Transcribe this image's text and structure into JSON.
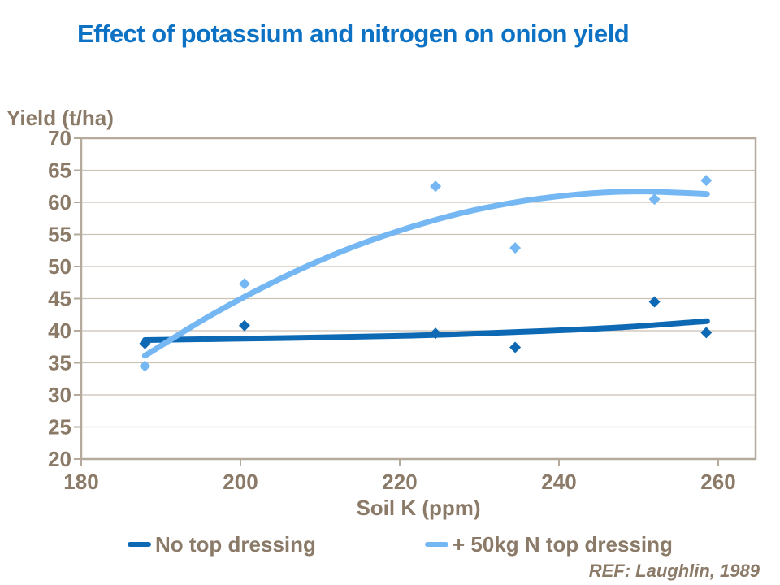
{
  "chart_data": {
    "type": "scatter",
    "title": "Effect of potassium and nitrogen on onion yield",
    "xlabel": "Soil K (ppm)",
    "ylabel": "Yield (t/ha)",
    "ref": "REF: Laughlin, 1989",
    "xlim": [
      180,
      265
    ],
    "ylim": [
      20,
      70
    ],
    "x_ticks": [
      180,
      200,
      220,
      240,
      260
    ],
    "y_ticks": [
      20,
      25,
      30,
      35,
      40,
      45,
      50,
      55,
      60,
      65,
      70
    ],
    "grid": "horizontal",
    "legend_position": "bottom",
    "series": [
      {
        "name": "No top dressing",
        "color": "#0d69b4",
        "marker": "diamond",
        "points": [
          [
            188,
            38.0
          ],
          [
            200.5,
            40.8
          ],
          [
            224.5,
            39.6
          ],
          [
            234.5,
            37.4
          ],
          [
            252,
            44.5
          ],
          [
            258.5,
            39.7
          ]
        ],
        "trendline": [
          [
            188,
            38.55
          ],
          [
            205,
            38.85
          ],
          [
            222,
            39.25
          ],
          [
            238,
            39.95
          ],
          [
            248,
            40.55
          ],
          [
            258.6,
            41.5
          ]
        ]
      },
      {
        "name": "+ 50kg N top dressing",
        "color": "#74b7f2",
        "marker": "diamond",
        "points": [
          [
            188,
            34.5
          ],
          [
            200.5,
            47.3
          ],
          [
            224.5,
            62.5
          ],
          [
            234.5,
            52.9
          ],
          [
            252,
            60.5
          ],
          [
            258.5,
            63.4
          ]
        ],
        "trendline": [
          [
            188,
            36.1
          ],
          [
            196,
            42.2
          ],
          [
            204,
            47.5
          ],
          [
            212,
            52.0
          ],
          [
            220,
            55.6
          ],
          [
            228,
            58.4
          ],
          [
            236,
            60.3
          ],
          [
            244,
            61.4
          ],
          [
            250.5,
            61.7
          ],
          [
            258.6,
            61.3
          ]
        ]
      }
    ]
  },
  "colors": {
    "title_text": "#0d72c4",
    "axis_text": "#8a7a67",
    "gridline": "#cbc1b5",
    "axis_line": "#b5aa9c"
  }
}
